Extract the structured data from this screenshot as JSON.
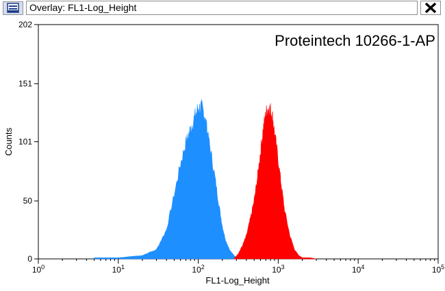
{
  "window": {
    "title": "Overlay: FL1-Log_Height",
    "app_icon": "histogram-app-icon",
    "close_icon": "close-icon"
  },
  "chart_data": {
    "type": "area",
    "title": "Proteintech 10266-1-AP",
    "xlabel": "FL1-Log_Height",
    "ylabel": "Counts",
    "x_scale": "log",
    "xlim": [
      1,
      100000
    ],
    "ylim": [
      0,
      202
    ],
    "x_ticks": [
      {
        "value": 1,
        "base": "10",
        "exp": "0"
      },
      {
        "value": 10,
        "base": "10",
        "exp": "1"
      },
      {
        "value": 100,
        "base": "10",
        "exp": "2"
      },
      {
        "value": 1000,
        "base": "10",
        "exp": "3"
      },
      {
        "value": 10000,
        "base": "10",
        "exp": "4"
      },
      {
        "value": 100000,
        "base": "10",
        "exp": "5"
      }
    ],
    "y_ticks": [
      "0",
      "50",
      "101",
      "151",
      "202"
    ],
    "grid": false,
    "series": [
      {
        "color": "#1e8fff",
        "x": [
          5,
          10,
          20,
          30,
          40,
          50,
          60,
          70,
          80,
          90,
          100,
          110,
          120,
          130,
          140,
          160,
          180,
          200,
          220,
          250,
          280,
          310
        ],
        "y": [
          1,
          1,
          3,
          8,
          25,
          55,
          82,
          100,
          112,
          122,
          130,
          130,
          124,
          110,
          96,
          72,
          48,
          28,
          16,
          7,
          3,
          0
        ]
      },
      {
        "color": "#ff0000",
        "x": [
          280,
          320,
          360,
          400,
          450,
          500,
          550,
          600,
          650,
          700,
          750,
          800,
          850,
          900,
          1000,
          1100,
          1200,
          1400,
          1600,
          1800,
          2000,
          2500,
          3000
        ],
        "y": [
          0,
          5,
          12,
          20,
          35,
          50,
          70,
          92,
          112,
          125,
          130,
          128,
          122,
          108,
          85,
          62,
          42,
          20,
          8,
          3,
          1,
          1,
          0
        ]
      }
    ]
  }
}
